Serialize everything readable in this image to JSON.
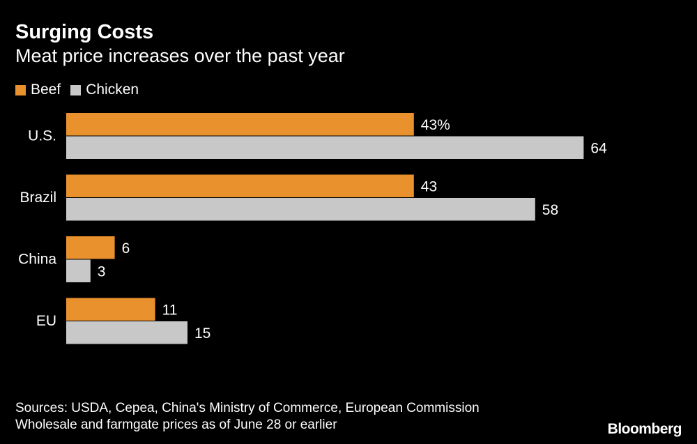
{
  "chart_data": {
    "type": "bar",
    "orientation": "horizontal",
    "title": "Surging Costs",
    "subtitle": "Meat price increases over the past year",
    "categories": [
      "U.S.",
      "Brazil",
      "China",
      "EU"
    ],
    "series": [
      {
        "name": "Beef",
        "values": [
          43,
          43,
          6,
          11
        ],
        "labels": [
          "43%",
          "43",
          "6",
          "11"
        ],
        "color": "#e8912d"
      },
      {
        "name": "Chicken",
        "values": [
          64,
          58,
          3,
          15
        ],
        "labels": [
          "64",
          "58",
          "3",
          "15"
        ],
        "color": "#c8c8c8"
      }
    ],
    "xlim": [
      0,
      70
    ],
    "grid": false,
    "legend_position": "top-left",
    "xlabel": "",
    "ylabel": ""
  },
  "footer": {
    "sources": "Sources: USDA, Cepea, China's Ministry of Commerce, European Commission",
    "note": "Wholesale and farmgate prices as of June 28 or earlier",
    "brand": "Bloomberg"
  }
}
